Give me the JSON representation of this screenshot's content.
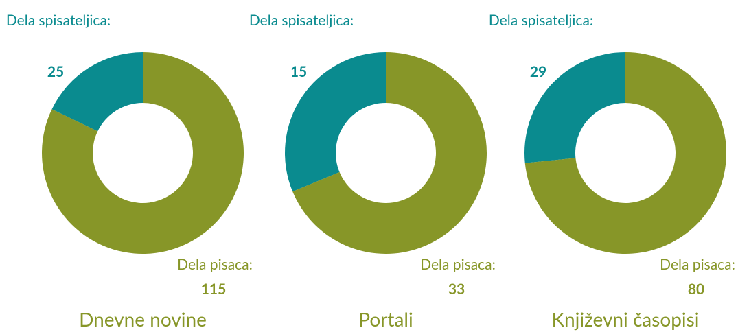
{
  "chart_data": [
    {
      "type": "pie",
      "donut": true,
      "title": "Dnevne novine",
      "categories": [
        "Dela spisateljica:",
        "Dela pisaca:"
      ],
      "values": [
        25,
        115
      ],
      "colors": [
        "#0a8b8f",
        "#879628"
      ]
    },
    {
      "type": "pie",
      "donut": true,
      "title": "Portali",
      "categories": [
        "Dela spisateljica:",
        "Dela pisaca:"
      ],
      "values": [
        15,
        33
      ],
      "colors": [
        "#0a8b8f",
        "#879628"
      ]
    },
    {
      "type": "pie",
      "donut": true,
      "title": "Književni časopisi",
      "categories": [
        "Dela spisateljica:",
        "Dela pisaca:"
      ],
      "values": [
        29,
        80
      ],
      "colors": [
        "#0a8b8f",
        "#879628"
      ]
    }
  ]
}
